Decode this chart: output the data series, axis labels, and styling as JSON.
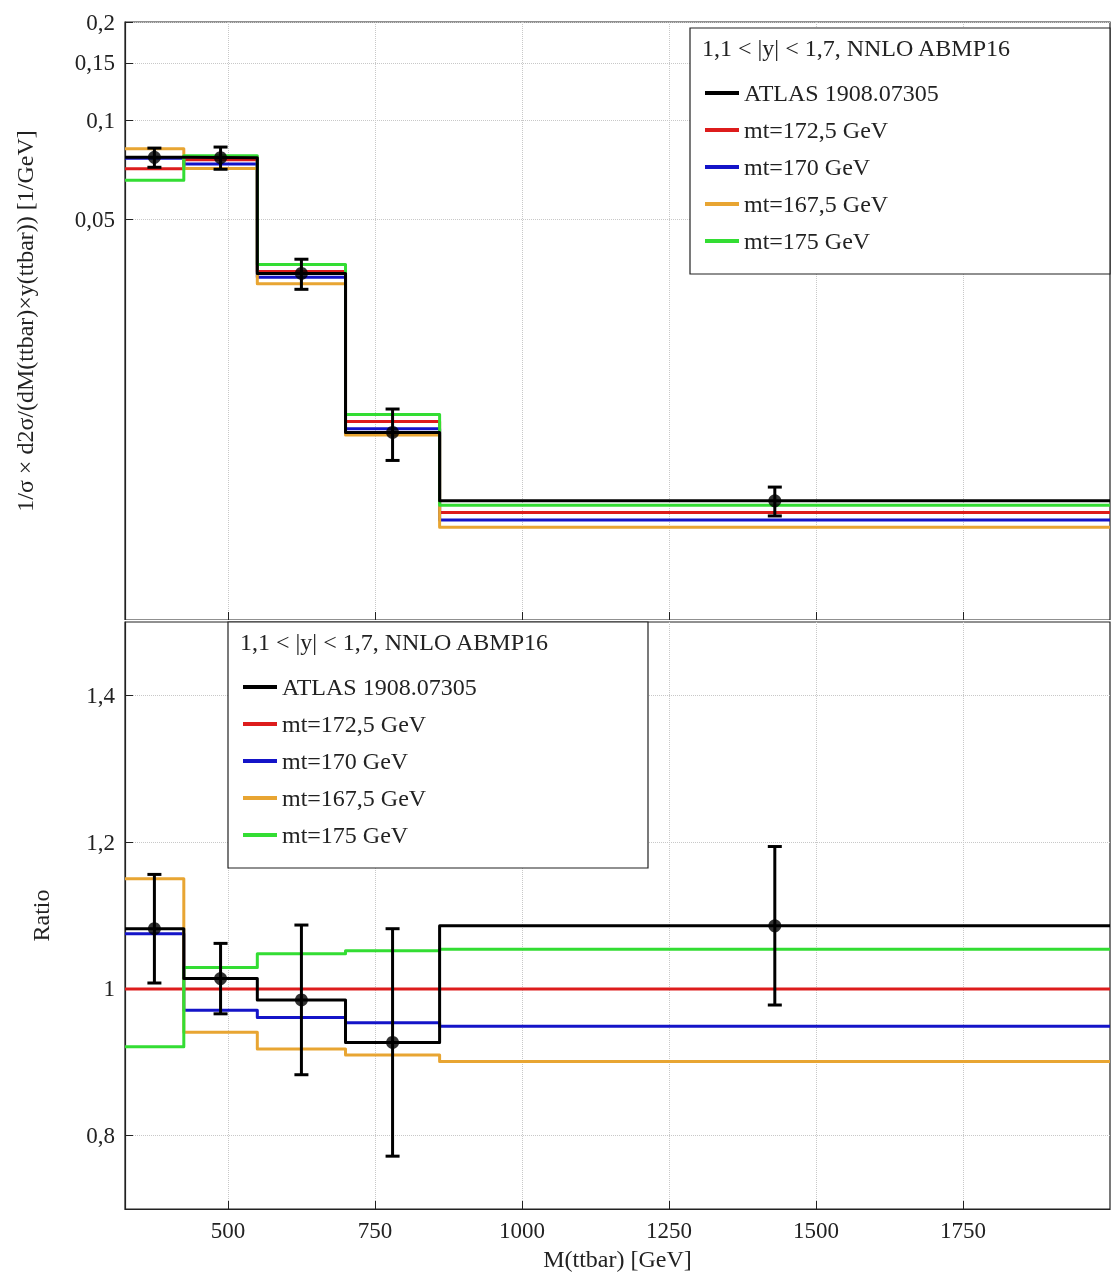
{
  "chart_data": [
    {
      "type": "histogram",
      "ylabel": "1/σ × d2σ/(dM(ttbar)×y(ttbar)) [1/GeV]",
      "legend_title": "1,1 < |y| < 1,7, NNLO ABMP16",
      "bins": [
        325,
        425,
        550,
        700,
        860,
        2000
      ],
      "xlim": [
        325,
        2000
      ],
      "xticks": [
        500,
        750,
        1000,
        1250,
        1500,
        1750
      ],
      "ylim": [
        0.003,
        0.2
      ],
      "yticks": [
        {
          "value": 0.05,
          "label": "0,05"
        },
        {
          "value": 0.1,
          "label": "0,1"
        },
        {
          "value": 0.15,
          "label": "0,15"
        },
        {
          "value": 0.2,
          "label": "0,2"
        }
      ],
      "log": true,
      "grid": true,
      "legend": "top right",
      "tick_labels": "y",
      "series": [
        {
          "name": "ATLAS 1908.07305",
          "color": "#000000",
          "values": [
            0.0773,
            0.0771,
            0.0342,
            0.0112,
            0.00693
          ]
        },
        {
          "type": "scatter",
          "color": "#000000",
          "x": [
            375,
            487.5,
            625,
            780,
            1430
          ],
          "values": [
            0.0773,
            0.0771,
            0.0342,
            0.0112,
            0.00693
          ],
          "errors": [
            0.0052,
            0.006,
            0.0036,
            0.002,
            0.0007
          ],
          "marker": "circle"
        },
        {
          "name": "mt=172,5 GeV",
          "color": "#dd1c1c",
          "values": [
            0.0714,
            0.076,
            0.0347,
            0.0121,
            0.00638
          ]
        },
        {
          "name": "mt=170 GeV",
          "color": "#1414c8",
          "values": [
            0.0768,
            0.0738,
            0.0333,
            0.0115,
            0.00605
          ]
        },
        {
          "name": "mt=167,5 GeV",
          "color": "#e8a532",
          "values": [
            0.0821,
            0.0715,
            0.0318,
            0.011,
            0.00575
          ]
        },
        {
          "name": "mt=175 GeV",
          "color": "#33dd33",
          "values": [
            0.0658,
            0.0782,
            0.0364,
            0.0127,
            0.00672
          ]
        }
      ]
    },
    {
      "type": "histogram",
      "xlabel": "M(ttbar) [GeV]",
      "ylabel": "Ratio",
      "legend_title": "1,1 < |y| < 1,7, NNLO ABMP16",
      "bins": [
        325,
        425,
        550,
        700,
        860,
        2000
      ],
      "xlim": [
        325,
        2000
      ],
      "xticks": [
        500,
        750,
        1000,
        1250,
        1500,
        1750
      ],
      "ylim": [
        0.7,
        1.5
      ],
      "yticks": [
        {
          "value": 0.8,
          "label": "0,8"
        },
        1,
        {
          "value": 1.2,
          "label": "1,2"
        },
        {
          "value": 1.4,
          "label": "1,4"
        }
      ],
      "grid": true,
      "legend": "top left",
      "series": [
        {
          "name": "ATLAS 1908.07305",
          "color": "#000000",
          "values": [
            1.082,
            1.014,
            0.985,
            0.927,
            1.086
          ]
        },
        {
          "type": "scatter",
          "color": "#000000",
          "x": [
            375,
            487.5,
            625,
            780,
            1430
          ],
          "values": [
            1.082,
            1.014,
            0.985,
            0.927,
            1.086
          ],
          "errors": [
            0.074,
            0.048,
            0.102,
            0.155,
            0.108
          ],
          "marker": "circle"
        },
        {
          "name": "mt=172,5 GeV",
          "color": "#dd1c1c",
          "values": [
            1,
            1,
            1,
            1,
            1
          ]
        },
        {
          "name": "mt=170 GeV",
          "color": "#1414c8",
          "values": [
            1.075,
            0.971,
            0.961,
            0.954,
            0.949
          ]
        },
        {
          "name": "mt=167,5 GeV",
          "color": "#e8a532",
          "values": [
            1.15,
            0.941,
            0.918,
            0.91,
            0.901
          ]
        },
        {
          "name": "mt=175 GeV",
          "color": "#33dd33",
          "values": [
            0.921,
            1.029,
            1.048,
            1.052,
            1.054
          ]
        }
      ]
    }
  ]
}
